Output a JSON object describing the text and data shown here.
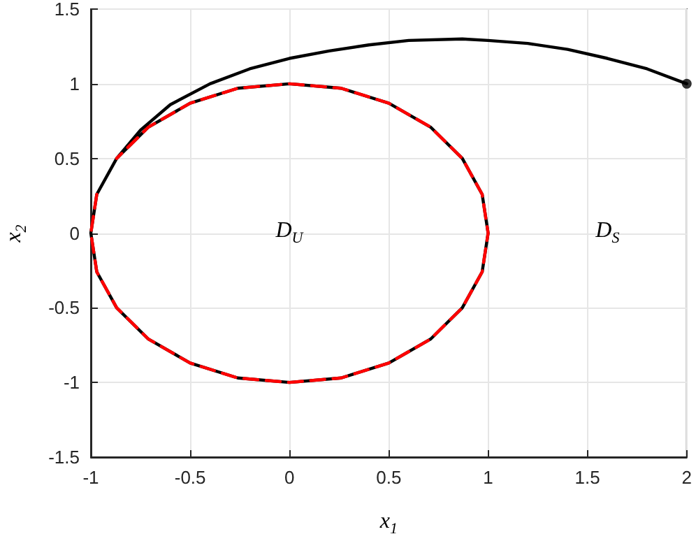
{
  "chart_data": {
    "type": "line",
    "xlabel": "x$_{1}$",
    "ylabel": "x$_{2}$",
    "xlim": [
      -1,
      2
    ],
    "ylim": [
      -1.5,
      1.5
    ],
    "xticks": [
      -1,
      -0.5,
      0,
      0.5,
      1,
      1.5,
      2
    ],
    "yticks": [
      -1.5,
      -1,
      -0.5,
      0,
      0.5,
      1,
      1.5
    ],
    "grid": true,
    "annotations": [
      "D$_{U}$",
      "D$_{S}$"
    ],
    "series": [
      {
        "color": "#000000",
        "marker": "none",
        "line_style": "solid",
        "x": [
          2,
          1.8,
          1.6,
          1.4,
          1.2,
          1,
          0.87,
          0.6,
          0.4,
          0.2,
          0,
          -0.2,
          -0.4,
          -0.6,
          -0.75,
          -0.87,
          -0.97,
          -1,
          -0.97,
          -0.87,
          -0.71,
          -0.5,
          -0.26,
          0,
          0.26,
          0.5,
          0.71,
          0.87,
          0.97,
          1,
          0.97,
          0.87,
          0.71,
          0.5,
          0.26,
          0,
          -0.26,
          -0.5,
          -0.71,
          -0.87
        ],
        "values": [
          1,
          1.1,
          1.17,
          1.23,
          1.27,
          1.29,
          1.3,
          1.29,
          1.26,
          1.22,
          1.17,
          1.1,
          1.0,
          0.86,
          0.69,
          0.5,
          0.26,
          0,
          -0.26,
          -0.5,
          -0.71,
          -0.87,
          -0.97,
          -1,
          -0.97,
          -0.87,
          -0.71,
          -0.5,
          -0.26,
          0,
          0.26,
          0.5,
          0.71,
          0.87,
          0.97,
          1,
          0.97,
          0.87,
          0.71,
          0.5
        ]
      },
      {
        "type": "scatter",
        "color": "#000000",
        "marker": "circle",
        "x": [
          2
        ],
        "values": [
          1
        ]
      },
      {
        "color": "#ff0000",
        "marker": "none",
        "line_style": "dashed",
        "x": [
          -0.97,
          -1,
          -0.97,
          -0.87,
          -0.71,
          -0.5,
          -0.26,
          0,
          0.26,
          0.5,
          0.71,
          0.87,
          0.97,
          1,
          0.97,
          0.87,
          0.71,
          0.5,
          0.26,
          0,
          -0.26,
          -0.5,
          -0.71,
          -0.87
        ],
        "values": [
          0.26,
          0,
          -0.26,
          -0.5,
          -0.71,
          -0.87,
          -0.97,
          -1,
          -0.97,
          -0.87,
          -0.71,
          -0.5,
          -0.26,
          0,
          0.26,
          0.5,
          0.71,
          0.87,
          0.97,
          1,
          0.97,
          0.87,
          0.71,
          0.5
        ]
      }
    ]
  }
}
